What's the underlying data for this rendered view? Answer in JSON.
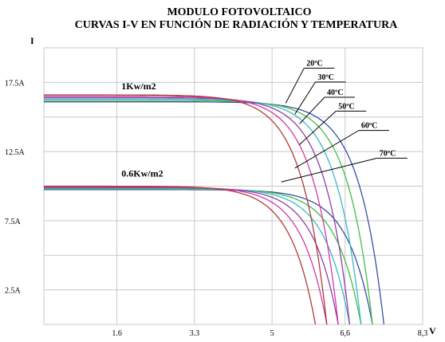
{
  "chart_data": {
    "type": "line",
    "title": "MODULO FOTOVOLTAICO",
    "subtitle": "CURVAS I-V EN FUNCIÓN DE RADIACIÓN Y TEMPERATURA",
    "xlabel": "V",
    "ylabel": "I",
    "xlim": [
      0,
      8.3
    ],
    "ylim": [
      0,
      20
    ],
    "x_ticks": [
      {
        "value": 1.6,
        "label": "1.6"
      },
      {
        "value": 3.3,
        "label": "3.3"
      },
      {
        "value": 5.0,
        "label": "5"
      },
      {
        "value": 6.6,
        "label": "6,6"
      },
      {
        "value": 8.3,
        "label": "8,3"
      }
    ],
    "y_ticks": [
      {
        "value": 2.5,
        "label": "2.5A"
      },
      {
        "value": 7.5,
        "label": "7.5A"
      },
      {
        "value": 12.5,
        "label": "12.5A"
      },
      {
        "value": 17.5,
        "label": "17.5A"
      }
    ],
    "y_gridlines": [
      2.5,
      5,
      7.5,
      10,
      12.5,
      15,
      17.5,
      20
    ],
    "grid": true,
    "legend": "none",
    "irradiance_labels": [
      {
        "label": "1Kw/m2",
        "x": 1.7,
        "y": 17.0
      },
      {
        "label": "0.6Kw/m2",
        "x": 1.7,
        "y": 10.7
      }
    ],
    "temperature_labels": [
      {
        "label": "20ºC",
        "line_from": [
          5.3,
          16.0
        ],
        "label_at": [
          5.7,
          18.7
        ]
      },
      {
        "label": "30ºC",
        "line_from": [
          5.5,
          15.2
        ],
        "label_at": [
          5.95,
          17.7
        ]
      },
      {
        "label": "40ºC",
        "line_from": [
          5.6,
          14.5
        ],
        "label_at": [
          6.15,
          16.6
        ]
      },
      {
        "label": "50ºC",
        "line_from": [
          5.6,
          13.0
        ],
        "label_at": [
          6.4,
          15.6
        ]
      },
      {
        "label": "60ºC",
        "line_from": [
          5.5,
          11.3
        ],
        "label_at": [
          6.9,
          14.2
        ]
      },
      {
        "label": "70ºC",
        "line_from": [
          5.2,
          10.3
        ],
        "label_at": [
          7.3,
          12.2
        ]
      }
    ],
    "series": [
      {
        "temperature": "20ºC",
        "color": "#3a4fa8",
        "curves": [
          {
            "irradiance": "1Kw/m2",
            "isc": 16.1,
            "voc": 7.45,
            "a": 0.55
          },
          {
            "irradiance": "0.6Kw/m2",
            "isc": 9.75,
            "voc": 7.2,
            "a": 0.55
          }
        ]
      },
      {
        "temperature": "30ºC",
        "color": "#3fbf48",
        "curves": [
          {
            "irradiance": "1Kw/m2",
            "isc": 16.2,
            "voc": 7.2,
            "a": 0.55
          },
          {
            "irradiance": "0.6Kw/m2",
            "isc": 9.8,
            "voc": 6.95,
            "a": 0.55
          }
        ]
      },
      {
        "temperature": "40ºC",
        "color": "#3ab8c6",
        "curves": [
          {
            "irradiance": "1Kw/m2",
            "isc": 16.3,
            "voc": 6.95,
            "a": 0.55
          },
          {
            "irradiance": "0.6Kw/m2",
            "isc": 9.85,
            "voc": 6.7,
            "a": 0.55
          }
        ]
      },
      {
        "temperature": "50ºC",
        "color": "#8e3fa8",
        "curves": [
          {
            "irradiance": "1Kw/m2",
            "isc": 16.4,
            "voc": 6.7,
            "a": 0.55
          },
          {
            "irradiance": "0.6Kw/m2",
            "isc": 9.9,
            "voc": 6.45,
            "a": 0.55
          }
        ]
      },
      {
        "temperature": "60ºC",
        "color": "#d23aa8",
        "curves": [
          {
            "irradiance": "1Kw/m2",
            "isc": 16.5,
            "voc": 6.45,
            "a": 0.55
          },
          {
            "irradiance": "0.6Kw/m2",
            "isc": 9.95,
            "voc": 6.2,
            "a": 0.55
          }
        ]
      },
      {
        "temperature": "70ºC",
        "color": "#b03a3a",
        "curves": [
          {
            "irradiance": "1Kw/m2",
            "isc": 16.6,
            "voc": 6.2,
            "a": 0.55
          },
          {
            "irradiance": "0.6Kw/m2",
            "isc": 10.0,
            "voc": 5.95,
            "a": 0.55
          }
        ]
      }
    ]
  }
}
